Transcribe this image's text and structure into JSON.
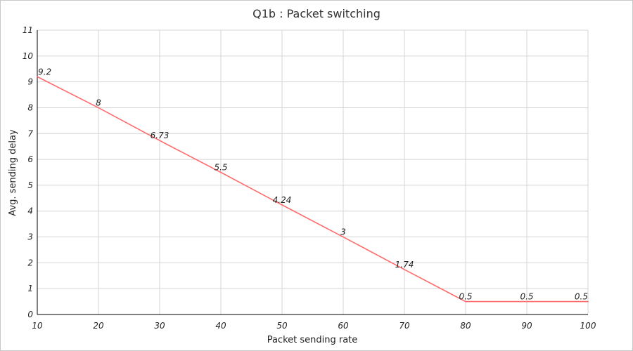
{
  "chart_data": {
    "type": "line",
    "title": "Q1b : Packet switching",
    "xlabel": "Packet sending rate",
    "ylabel": "Avg. sending delay",
    "xlim": [
      10,
      100
    ],
    "ylim": [
      0,
      11
    ],
    "x_ticks": [
      10,
      20,
      30,
      40,
      50,
      60,
      70,
      80,
      90,
      100
    ],
    "y_ticks": [
      0,
      1,
      2,
      3,
      4,
      5,
      6,
      7,
      8,
      9,
      10,
      11
    ],
    "grid": true,
    "legend": "none",
    "series": [
      {
        "color": "#ff6b6b",
        "x": [
          10,
          20,
          30,
          40,
          50,
          60,
          70,
          80,
          90,
          100
        ],
        "values": [
          9.2,
          8,
          6.73,
          5.5,
          4.24,
          3,
          1.74,
          0.5,
          0.5,
          0.5
        ],
        "labels": [
          "9.2",
          "8",
          "6.73",
          "5.5",
          "4.24",
          "3",
          "1.74",
          "0.5",
          "0.5",
          "0.5"
        ]
      }
    ]
  }
}
